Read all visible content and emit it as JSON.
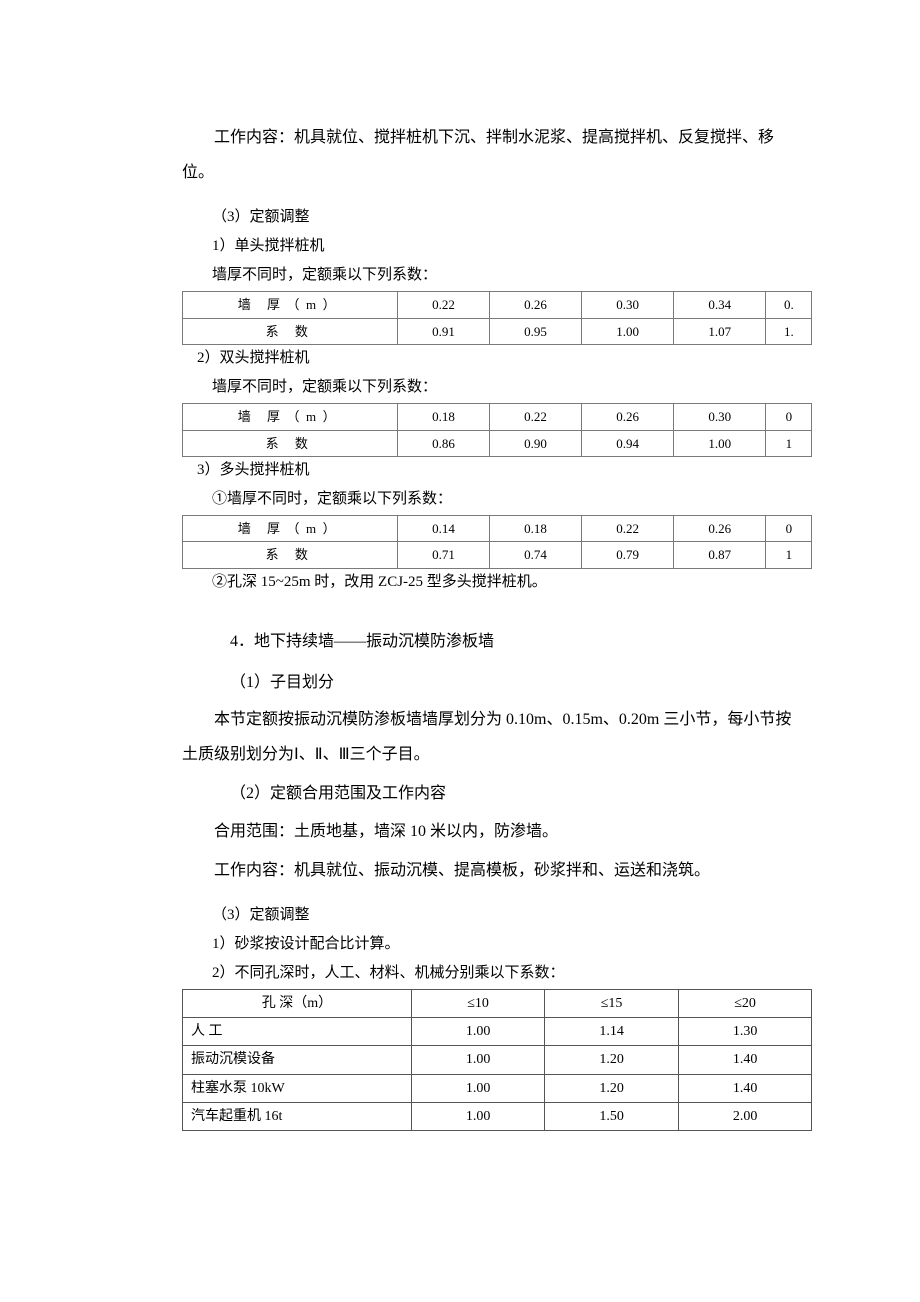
{
  "intro": {
    "p1": "工作内容：机具就位、搅拌桩机下沉、拌制水泥浆、提高搅拌机、反复搅拌、移位。"
  },
  "sec3": {
    "heading": "（3）定额调整",
    "sub1": {
      "title": "1）单头搅拌桩机",
      "caption": "墙厚不同时，定额乘以下列系数：",
      "row1_label": "墙 厚（m）",
      "row1": [
        "0.22",
        "0.26",
        "0.30",
        "0.34",
        "0."
      ],
      "row2_label": "系  数",
      "row2": [
        "0.91",
        "0.95",
        "1.00",
        "1.07",
        "1."
      ]
    },
    "sub2": {
      "title": "2）双头搅拌桩机",
      "caption": "墙厚不同时，定额乘以下列系数：",
      "row1_label": "墙 厚（m）",
      "row1": [
        "0.18",
        "0.22",
        "0.26",
        "0.30",
        "0"
      ],
      "row2_label": "系  数",
      "row2": [
        "0.86",
        "0.90",
        "0.94",
        "1.00",
        "1"
      ]
    },
    "sub3": {
      "title": "3）多头搅拌桩机",
      "caption": "①墙厚不同时，定额乘以下列系数：",
      "row1_label": "墙 厚（m）",
      "row1": [
        "0.14",
        "0.18",
        "0.22",
        "0.26",
        "0"
      ],
      "row2_label": "系  数",
      "row2": [
        "0.71",
        "0.74",
        "0.79",
        "0.87",
        "1"
      ],
      "note": "②孔深 15~25m 时，改用 ZCJ-25 型多头搅拌桩机。"
    }
  },
  "sec4": {
    "title": "4．地下持续墙——振动沉模防渗板墙",
    "p1": "（1）子目划分",
    "p2": "本节定额按振动沉模防渗板墙墙厚划分为 0.10m、0.15m、0.20m 三小节，每小节按土质级别划分为Ⅰ、Ⅱ、Ⅲ三个子目。",
    "p3": "（2）定额合用范围及工作内容",
    "p4": "合用范围：土质地基，墙深 10 米以内，防渗墙。",
    "p5": "工作内容：机具就位、振动沉模、提高模板，砂浆拌和、运送和浇筑。",
    "p6": "（3）定额调整",
    "p7": "1）砂浆按设计配合比计算。",
    "p8": "2）不同孔深时，人工、材料、机械分别乘以下系数："
  },
  "table5": {
    "headers": [
      "孔  深（m）",
      "≤10",
      "≤15",
      "≤20"
    ],
    "rows": [
      {
        "label": "人  工",
        "vals": [
          "1.00",
          "1.14",
          "1.30"
        ]
      },
      {
        "label": "振动沉模设备",
        "vals": [
          "1.00",
          "1.20",
          "1.40"
        ]
      },
      {
        "label": "柱塞水泵  10kW",
        "vals": [
          "1.00",
          "1.20",
          "1.40"
        ]
      },
      {
        "label": "汽车起重机  16t",
        "vals": [
          "1.00",
          "1.50",
          "2.00"
        ]
      }
    ]
  }
}
